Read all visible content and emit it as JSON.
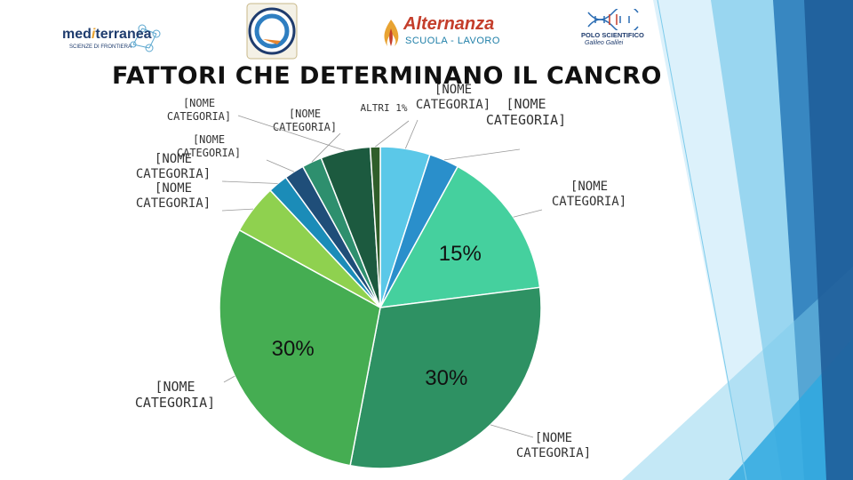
{
  "header": {
    "title": "FATTORI CHE DETERMINANO IL CANCRO",
    "logos": [
      {
        "name": "mediterranea-logo",
        "text_a": "med",
        "text_b": "i",
        "text_c": "terranea",
        "caption": "SCIENZE DI FRONTIERA"
      },
      {
        "name": "school-seal-logo"
      },
      {
        "name": "alternanza-logo",
        "text": "Alternanza",
        "sub": "SCUOLA - LAVORO"
      },
      {
        "name": "polo-scientifico-logo",
        "text": "POLO SCIENTIFICO",
        "sub": "Galileo Galilei"
      }
    ]
  },
  "chart_data": {
    "type": "pie",
    "title": "FATTORI CHE DETERMINANO IL CANCRO",
    "slices": [
      {
        "label": "[NOME CATEGORIA]",
        "value": 5,
        "color": "#5BC8E8"
      },
      {
        "label": "[NOME CATEGORIA]",
        "value": 3,
        "color": "#2A8FCB"
      },
      {
        "label": "[NOME CATEGORIA]",
        "value": 15,
        "color": "#45D09E",
        "data_label": "15%"
      },
      {
        "label": "[NOME CATEGORIA]",
        "value": 30,
        "color": "#2E9163",
        "data_label": "30%"
      },
      {
        "label": "[NOME CATEGORIA]",
        "value": 30,
        "color": "#45AD52",
        "data_label": "30%"
      },
      {
        "label": "[NOME CATEGORIA]",
        "value": 5,
        "color": "#8FD14F"
      },
      {
        "label": "[NOME CATEGORIA]",
        "value": 2,
        "color": "#1B8CB8"
      },
      {
        "label": "[NOME CATEGORIA]",
        "value": 2,
        "color": "#1F4E79"
      },
      {
        "label": "[NOME CATEGORIA]",
        "value": 2,
        "color": "#2E8F6E"
      },
      {
        "label": "[NOME CATEGORIA]",
        "value": 5,
        "color": "#1C5A3F"
      },
      {
        "label": "ALTRI 1%",
        "value": 1,
        "color": "#2F5E2A"
      }
    ]
  },
  "decor": {
    "stripe_colors": [
      "#BFE6F7",
      "#7CCBEB",
      "#2FA8DF",
      "#2779B8",
      "#1F5E9A"
    ]
  }
}
